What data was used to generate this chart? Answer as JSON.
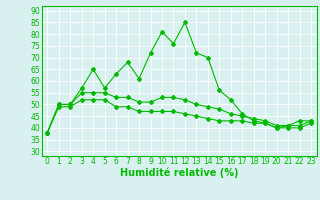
{
  "title": "",
  "xlabel": "Humidité relative (%)",
  "ylabel": "",
  "xlim": [
    -0.5,
    23.5
  ],
  "ylim": [
    28,
    92
  ],
  "yticks": [
    30,
    35,
    40,
    45,
    50,
    55,
    60,
    65,
    70,
    75,
    80,
    85,
    90
  ],
  "xticks": [
    0,
    1,
    2,
    3,
    4,
    5,
    6,
    7,
    8,
    9,
    10,
    11,
    12,
    13,
    14,
    15,
    16,
    17,
    18,
    19,
    20,
    21,
    22,
    23
  ],
  "background_color": "#d8f0f0",
  "grid_color": "#ffffff",
  "line_color": "#00bb00",
  "series1_x": [
    0,
    1,
    2,
    3,
    4,
    5,
    6,
    7,
    8,
    9,
    10,
    11,
    12,
    13,
    14,
    15,
    16,
    17,
    18,
    19,
    20,
    21,
    22,
    23
  ],
  "series1_y": [
    38,
    50,
    50,
    57,
    65,
    57,
    63,
    68,
    61,
    72,
    81,
    76,
    85,
    72,
    70,
    56,
    52,
    46,
    43,
    42,
    40,
    41,
    43,
    43
  ],
  "series2_x": [
    0,
    1,
    2,
    3,
    4,
    5,
    6,
    7,
    8,
    9,
    10,
    11,
    12,
    13,
    14,
    15,
    16,
    17,
    18,
    19,
    20,
    21,
    22,
    23
  ],
  "series2_y": [
    38,
    50,
    50,
    55,
    55,
    55,
    53,
    53,
    51,
    51,
    53,
    53,
    52,
    50,
    49,
    48,
    46,
    45,
    44,
    43,
    41,
    41,
    41,
    43
  ],
  "series3_x": [
    0,
    1,
    2,
    3,
    4,
    5,
    6,
    7,
    8,
    9,
    10,
    11,
    12,
    13,
    14,
    15,
    16,
    17,
    18,
    19,
    20,
    21,
    22,
    23
  ],
  "series3_y": [
    38,
    49,
    49,
    52,
    52,
    52,
    49,
    49,
    47,
    47,
    47,
    47,
    46,
    45,
    44,
    43,
    43,
    43,
    42,
    42,
    40,
    40,
    40,
    42
  ],
  "marker": "D",
  "marker_size": 2.0,
  "line_width": 0.8,
  "tick_fontsize": 5.5,
  "xlabel_fontsize": 7,
  "xlabel_color": "#00bb00",
  "tick_color": "#00bb00"
}
